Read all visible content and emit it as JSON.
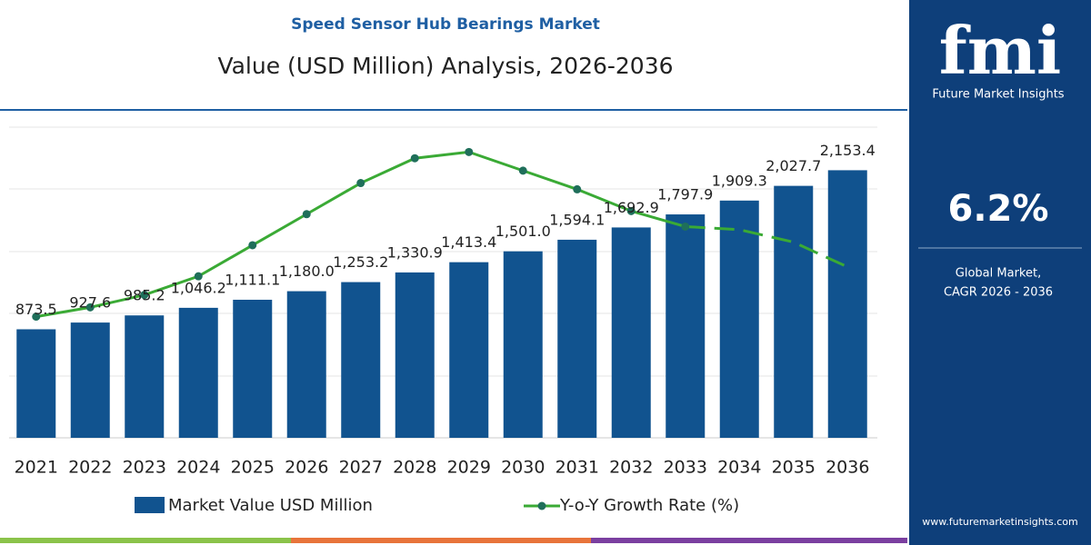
{
  "chart_data": {
    "type": "bar_line",
    "supertitle": "Speed Sensor Hub Bearings Market",
    "title": "Value (USD Million) Analysis, 2026-2036",
    "categories": [
      "2021",
      "2022",
      "2023",
      "2024",
      "2025",
      "2026",
      "2027",
      "2028",
      "2029",
      "2030",
      "2031",
      "2032",
      "2033",
      "2034",
      "2035",
      "2036"
    ],
    "ylim": [
      0,
      2500
    ],
    "y2lim": [
      0,
      10
    ],
    "series": [
      {
        "name": "Market Value USD Million",
        "color": "#11538f",
        "values": [
          873.5,
          927.6,
          985.2,
          1046.2,
          1111.1,
          1180.0,
          1253.2,
          1330.9,
          1413.4,
          1501.0,
          1594.1,
          1692.9,
          1797.9,
          1909.3,
          2027.7,
          2153.4
        ],
        "value_labels": [
          "873.5",
          "927.6",
          "985.2",
          "1,046.2",
          "1,111.1",
          "1,180.0",
          "1,253.2",
          "1,330.9",
          "1,413.4",
          "1,501.0",
          "1,594.1",
          "1,692.9",
          "1,797.9",
          "1,909.3",
          "2,027.7",
          "2,153.4"
        ]
      },
      {
        "name": "Y-o-Y Growth Rate (%)",
        "color": "#3aaa35",
        "axis": "y2",
        "dashed_from": 12,
        "values": [
          3.9,
          4.2,
          4.6,
          5.2,
          6.2,
          7.2,
          8.2,
          9.0,
          9.2,
          8.6,
          8.0,
          7.3,
          6.8,
          6.7,
          6.3,
          5.5
        ]
      }
    ]
  },
  "panel": {
    "logo": "fmi",
    "brand": "Future Market Insights",
    "cagr": "6.2%",
    "caption_1": "Global Market,",
    "caption_2": "CAGR 2026 - 2036",
    "url": "www.futuremarketinsights.com"
  }
}
